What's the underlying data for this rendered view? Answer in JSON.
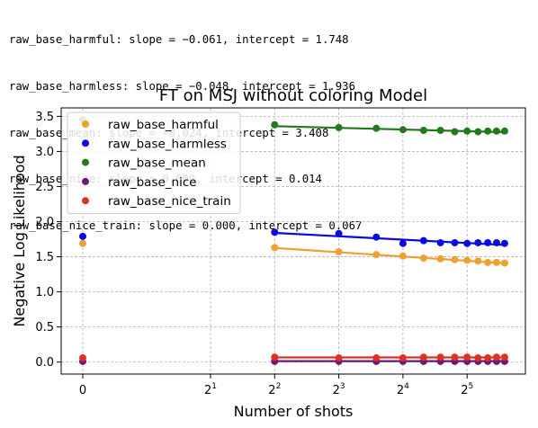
{
  "fit_summary": [
    "raw_base_harmful: slope = −0.061, intercept = 1.748",
    "raw_base_harmless: slope = −0.048, intercept = 1.936",
    "raw_base_mean: slope = −0.024, intercept = 3.408",
    "raw_base_nice: slope = 0.000, intercept = 0.014",
    "raw_base_nice_train: slope = 0.000, intercept = 0.067"
  ],
  "chart_data": {
    "type": "scatter",
    "title": "FT on MSJ without coloring Model",
    "xlabel": "Number of shots",
    "ylabel": "Negative Log Likelihood",
    "x_scale": "symlog base 2",
    "x_ticks": [
      {
        "value": 0,
        "label": "0"
      },
      {
        "value": 2,
        "base": "2",
        "exp": "1"
      },
      {
        "value": 4,
        "base": "2",
        "exp": "2"
      },
      {
        "value": 8,
        "base": "2",
        "exp": "3"
      },
      {
        "value": 16,
        "base": "2",
        "exp": "4"
      },
      {
        "value": 32,
        "base": "2",
        "exp": "5"
      }
    ],
    "y_ticks": [
      "0.0",
      "0.5",
      "1.0",
      "1.5",
      "2.0",
      "2.5",
      "3.0",
      "3.5"
    ],
    "ylim": [
      -0.17,
      3.62
    ],
    "grid": true,
    "legend_position": "upper-left",
    "x": [
      0,
      4,
      8,
      12,
      16,
      20,
      24,
      28,
      32,
      36,
      40,
      44,
      48
    ],
    "series": [
      {
        "name": "raw_base_harmful",
        "color": "#f0a030",
        "values": [
          1.69,
          1.63,
          1.57,
          1.53,
          1.51,
          1.48,
          1.47,
          1.46,
          1.45,
          1.44,
          1.42,
          1.42,
          1.41
        ],
        "fit": {
          "slope": -0.061,
          "intercept": 1.748
        }
      },
      {
        "name": "raw_base_harmless",
        "color": "#0a0ae0",
        "values": [
          1.79,
          1.85,
          1.83,
          1.78,
          1.69,
          1.73,
          1.7,
          1.7,
          1.69,
          1.7,
          1.7,
          1.7,
          1.69
        ],
        "fit": {
          "slope": -0.048,
          "intercept": 1.936
        }
      },
      {
        "name": "raw_base_mean",
        "color": "#237a1a",
        "values": [
          3.45,
          3.38,
          3.34,
          3.33,
          3.31,
          3.3,
          3.3,
          3.28,
          3.29,
          3.28,
          3.29,
          3.29,
          3.29
        ],
        "fit": {
          "slope": -0.024,
          "intercept": 3.408
        }
      },
      {
        "name": "raw_base_nice",
        "color": "#6b1a7a",
        "values": [
          0.01,
          0.01,
          0.01,
          0.01,
          0.01,
          0.01,
          0.01,
          0.01,
          0.01,
          0.01,
          0.01,
          0.01,
          0.01
        ],
        "fit": {
          "slope": 0.0,
          "intercept": 0.014
        }
      },
      {
        "name": "raw_base_nice_train",
        "color": "#e03020",
        "values": [
          0.06,
          0.07,
          0.06,
          0.06,
          0.06,
          0.07,
          0.07,
          0.07,
          0.07,
          0.06,
          0.06,
          0.07,
          0.07
        ],
        "fit": {
          "slope": 0.0,
          "intercept": 0.067
        }
      }
    ]
  }
}
